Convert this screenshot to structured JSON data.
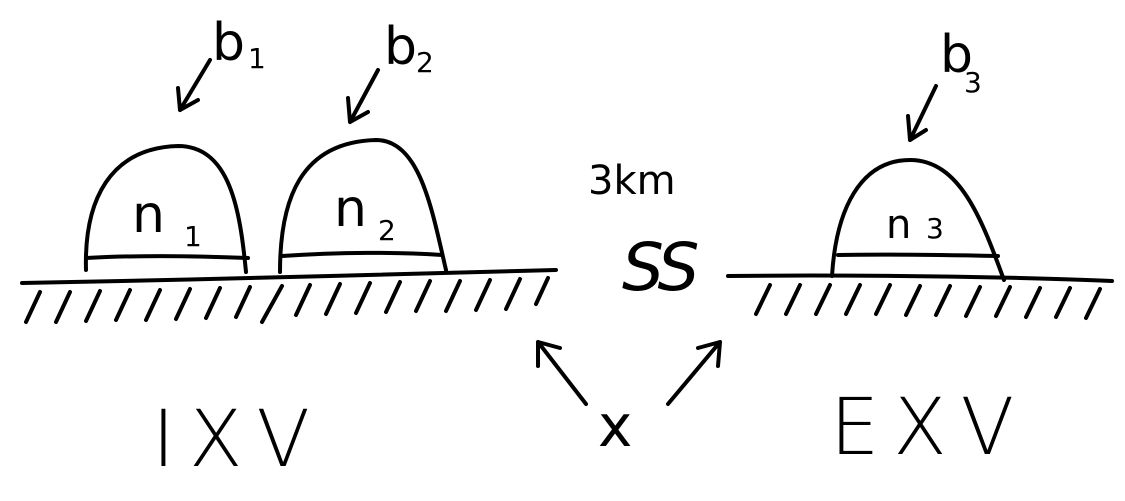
{
  "diagram": {
    "colors": {
      "ink": "#000000",
      "background": "#ffffff"
    },
    "left_group": {
      "label": "IXV",
      "mounds": [
        {
          "id": "n1",
          "top_label": "b",
          "top_sub": "1",
          "inner_label": "n",
          "inner_sub": "1"
        },
        {
          "id": "n2",
          "top_label": "b",
          "top_sub": "2",
          "inner_label": "n",
          "inner_sub": "2"
        }
      ]
    },
    "right_group": {
      "label": "EXV",
      "mounds": [
        {
          "id": "n3",
          "top_label": "b",
          "top_sub": "3",
          "inner_label": "n",
          "inner_sub": "3"
        }
      ]
    },
    "gap": {
      "distance_label": "3km",
      "break_symbol": "SS"
    },
    "bottom_label": "x"
  }
}
